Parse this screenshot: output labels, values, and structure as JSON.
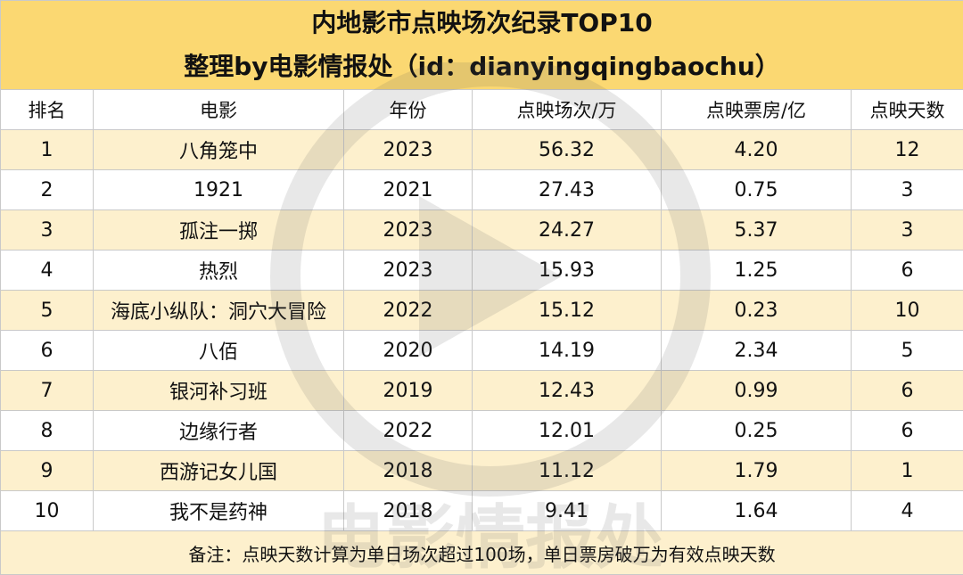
{
  "title": "内地影市点映场次纪录TOP10",
  "subtitle": "整理by电影情报处（id：dianyingqingbaochu）",
  "headers": {
    "rank": "排名",
    "movie": "电影",
    "year": "年份",
    "sessions": "点映场次/万",
    "box_office": "点映票房/亿",
    "days": "点映天数"
  },
  "rows": [
    {
      "rank": "1",
      "movie": "八角笼中",
      "year": "2023",
      "sessions": "56.32",
      "box_office": "4.20",
      "days": "12"
    },
    {
      "rank": "2",
      "movie": "1921",
      "year": "2021",
      "sessions": "27.43",
      "box_office": "0.75",
      "days": "3"
    },
    {
      "rank": "3",
      "movie": "孤注一掷",
      "year": "2023",
      "sessions": "24.27",
      "box_office": "5.37",
      "days": "3"
    },
    {
      "rank": "4",
      "movie": "热烈",
      "year": "2023",
      "sessions": "15.93",
      "box_office": "1.25",
      "days": "6"
    },
    {
      "rank": "5",
      "movie": "海底小纵队：洞穴大冒险",
      "year": "2022",
      "sessions": "15.12",
      "box_office": "0.23",
      "days": "10"
    },
    {
      "rank": "6",
      "movie": "八佰",
      "year": "2020",
      "sessions": "14.19",
      "box_office": "2.34",
      "days": "5"
    },
    {
      "rank": "7",
      "movie": "银河补习班",
      "year": "2019",
      "sessions": "12.43",
      "box_office": "0.99",
      "days": "6"
    },
    {
      "rank": "8",
      "movie": "边缘行者",
      "year": "2022",
      "sessions": "12.01",
      "box_office": "0.25",
      "days": "6"
    },
    {
      "rank": "9",
      "movie": "西游记女儿国",
      "year": "2018",
      "sessions": "11.12",
      "box_office": "1.79",
      "days": "1"
    },
    {
      "rank": "10",
      "movie": "我不是药神",
      "year": "2018",
      "sessions": "9.41",
      "box_office": "1.64",
      "days": "4"
    }
  ],
  "note": "备注：点映天数计算为单日场次超过100场，单日票房破万为有效点映天数",
  "watermark": {
    "text": "电影情报处",
    "icon": "play-logo-icon"
  },
  "colors": {
    "header_bg": "#fbd872",
    "stripe": "#fdf0cd",
    "grid": "#c9c9c9"
  }
}
